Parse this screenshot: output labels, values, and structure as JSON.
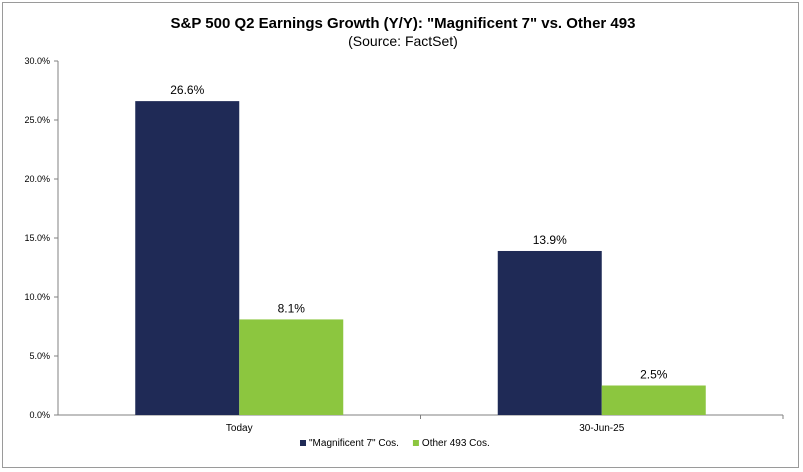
{
  "chart_data": {
    "type": "bar",
    "title": "S&P 500 Q2 Earnings Growth (Y/Y): \"Magnificent 7\" vs. Other 493",
    "subtitle": "(Source: FactSet)",
    "categories": [
      "Today",
      "30-Jun-25"
    ],
    "series": [
      {
        "name": "\"Magnificent 7\" Cos.",
        "values": [
          26.6,
          13.9
        ],
        "labels": [
          "26.6%",
          "13.9%"
        ],
        "color": "#1f2a56"
      },
      {
        "name": "Other 493 Cos.",
        "values": [
          8.1,
          2.5
        ],
        "labels": [
          "8.1%",
          "2.5%"
        ],
        "color": "#8cc63f"
      }
    ],
    "ylim": [
      0,
      30
    ],
    "yticks": [
      "0.0%",
      "5.0%",
      "10.0%",
      "15.0%",
      "20.0%",
      "25.0%",
      "30.0%"
    ],
    "xlabel": "",
    "ylabel": "",
    "grid": false,
    "legend": "bottom-center"
  }
}
